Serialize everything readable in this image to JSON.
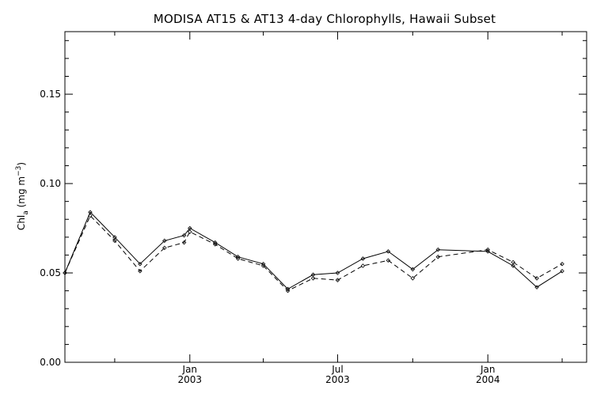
{
  "chart_data": {
    "type": "line",
    "title": "MODISA AT15 & AT13 4-day Chlorophylls, Hawaii Subset",
    "ylabel_main": "Chl",
    "ylabel_sub": "a",
    "ylabel_unit_prefix": " (mg m",
    "ylabel_unit_exp": "−3",
    "ylabel_unit_suffix": ")",
    "ylim": [
      0.0,
      0.185
    ],
    "yticks": [
      {
        "value": 0.0,
        "label": "0.00"
      },
      {
        "value": 0.05,
        "label": "0.05"
      },
      {
        "value": 0.1,
        "label": "0.10"
      },
      {
        "value": 0.15,
        "label": "0.15"
      }
    ],
    "y_minor_step": 0.01,
    "xlim": [
      "2002-08-01",
      "2004-05-01"
    ],
    "xticks": [
      {
        "date": "2003-01-01",
        "line1": "Jan",
        "line2": "2003"
      },
      {
        "date": "2003-07-01",
        "line1": "Jul",
        "line2": "2003"
      },
      {
        "date": "2004-01-01",
        "line1": "Jan",
        "line2": "2004"
      }
    ],
    "x_minor_ticks": [
      "2002-10-01",
      "2003-04-01",
      "2003-10-01",
      "2004-04-01"
    ],
    "series": [
      {
        "style": "solid",
        "color": "#000000",
        "points": [
          {
            "x": "2002-08-01",
            "y": 0.05
          },
          {
            "x": "2002-09-01",
            "y": 0.084
          },
          {
            "x": "2002-10-01",
            "y": 0.07
          },
          {
            "x": "2002-11-01",
            "y": 0.055
          },
          {
            "x": "2002-12-01",
            "y": 0.068
          },
          {
            "x": "2002-12-25",
            "y": 0.071
          },
          {
            "x": "2003-01-01",
            "y": 0.075
          },
          {
            "x": "2003-02-01",
            "y": 0.067
          },
          {
            "x": "2003-03-01",
            "y": 0.059
          },
          {
            "x": "2003-04-01",
            "y": 0.055
          },
          {
            "x": "2003-05-01",
            "y": 0.041
          },
          {
            "x": "2003-06-01",
            "y": 0.049
          },
          {
            "x": "2003-07-01",
            "y": 0.05
          },
          {
            "x": "2003-08-01",
            "y": 0.058
          },
          {
            "x": "2003-09-01",
            "y": 0.062
          },
          {
            "x": "2003-10-01",
            "y": 0.052
          },
          {
            "x": "2003-11-01",
            "y": 0.063
          },
          {
            "x": "2004-01-01",
            "y": 0.062
          },
          {
            "x": "2004-02-01",
            "y": 0.054
          },
          {
            "x": "2004-03-01",
            "y": 0.042
          },
          {
            "x": "2004-04-01",
            "y": 0.051
          }
        ]
      },
      {
        "style": "dashed",
        "color": "#000000",
        "points": [
          {
            "x": "2002-08-01",
            "y": 0.05
          },
          {
            "x": "2002-09-01",
            "y": 0.082
          },
          {
            "x": "2002-10-01",
            "y": 0.068
          },
          {
            "x": "2002-11-01",
            "y": 0.051
          },
          {
            "x": "2002-12-01",
            "y": 0.064
          },
          {
            "x": "2002-12-25",
            "y": 0.067
          },
          {
            "x": "2003-01-01",
            "y": 0.073
          },
          {
            "x": "2003-02-01",
            "y": 0.066
          },
          {
            "x": "2003-03-01",
            "y": 0.058
          },
          {
            "x": "2003-04-01",
            "y": 0.054
          },
          {
            "x": "2003-05-01",
            "y": 0.04
          },
          {
            "x": "2003-06-01",
            "y": 0.047
          },
          {
            "x": "2003-07-01",
            "y": 0.046
          },
          {
            "x": "2003-08-01",
            "y": 0.054
          },
          {
            "x": "2003-09-01",
            "y": 0.057
          },
          {
            "x": "2003-10-01",
            "y": 0.047
          },
          {
            "x": "2003-11-01",
            "y": 0.059
          },
          {
            "x": "2004-01-01",
            "y": 0.063
          },
          {
            "x": "2004-02-01",
            "y": 0.056
          },
          {
            "x": "2004-03-01",
            "y": 0.047
          },
          {
            "x": "2004-04-01",
            "y": 0.055
          }
        ]
      }
    ]
  }
}
